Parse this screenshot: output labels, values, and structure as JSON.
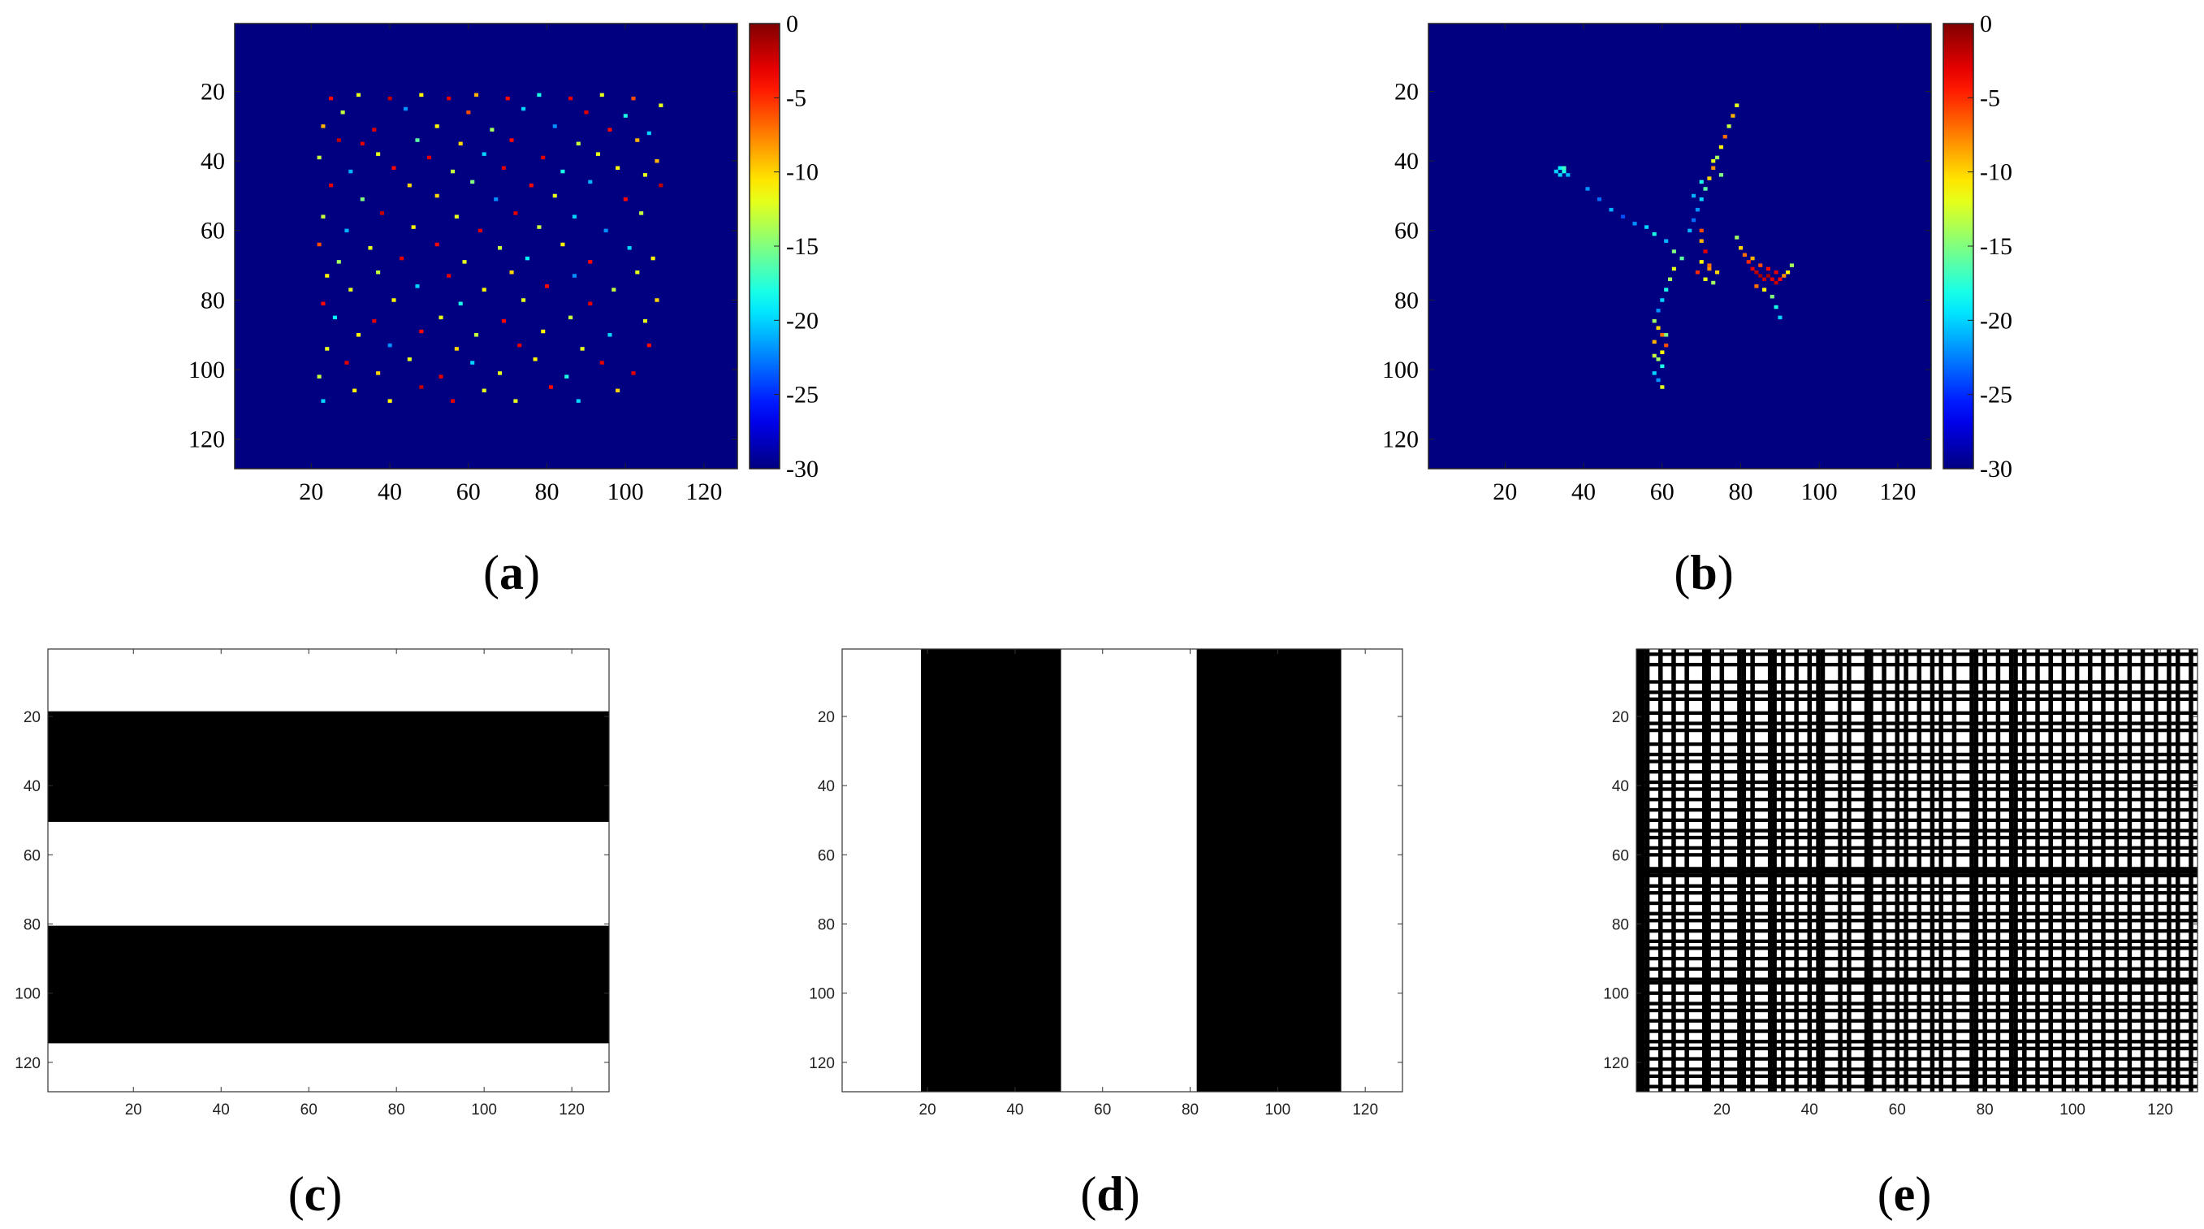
{
  "chart_data": [
    {
      "panel": "a",
      "type": "heatmap",
      "caption": "(a)",
      "colormap": "jet",
      "xlim": [
        0.5,
        128.5
      ],
      "ylim": [
        0.5,
        128.5
      ],
      "xticks": [
        20,
        40,
        60,
        80,
        100,
        120
      ],
      "yticks": [
        20,
        40,
        60,
        80,
        100,
        120
      ],
      "xticklabels": [
        "20",
        "40",
        "60",
        "80",
        "100",
        "120"
      ],
      "yticklabels": [
        "20",
        "40",
        "60",
        "80",
        "100",
        "120"
      ],
      "colorbar": {
        "range": [
          -30,
          0
        ],
        "ticks": [
          "0",
          "-5",
          "-10",
          "-15",
          "-20",
          "-25",
          "-30"
        ]
      },
      "background_value": -30,
      "points": [
        [
          25,
          22,
          -4
        ],
        [
          32,
          21,
          -12
        ],
        [
          40,
          22,
          -2
        ],
        [
          48,
          21,
          -11
        ],
        [
          55,
          22,
          -3
        ],
        [
          62,
          21,
          -9
        ],
        [
          70,
          22,
          -4
        ],
        [
          78,
          21,
          -18
        ],
        [
          86,
          22,
          -3
        ],
        [
          94,
          21,
          -12
        ],
        [
          102,
          22,
          -6
        ],
        [
          109,
          24,
          -12
        ],
        [
          28,
          26,
          -13
        ],
        [
          44,
          25,
          -22
        ],
        [
          60,
          26,
          -6
        ],
        [
          74,
          25,
          -20
        ],
        [
          90,
          26,
          -3
        ],
        [
          100,
          27,
          -18
        ],
        [
          23,
          30,
          -9
        ],
        [
          36,
          31,
          -3
        ],
        [
          52,
          30,
          -11
        ],
        [
          66,
          31,
          -14
        ],
        [
          82,
          30,
          -22
        ],
        [
          96,
          31,
          -4
        ],
        [
          106,
          32,
          -20
        ],
        [
          27,
          34,
          -2
        ],
        [
          33,
          35,
          -3
        ],
        [
          47,
          34,
          -16
        ],
        [
          58,
          35,
          -10
        ],
        [
          71,
          34,
          -4
        ],
        [
          88,
          35,
          -13
        ],
        [
          103,
          34,
          -9
        ],
        [
          22,
          39,
          -13
        ],
        [
          37,
          38,
          -12
        ],
        [
          50,
          39,
          -3
        ],
        [
          64,
          38,
          -20
        ],
        [
          79,
          39,
          -3
        ],
        [
          93,
          38,
          -12
        ],
        [
          108,
          40,
          -9
        ],
        [
          30,
          43,
          -21
        ],
        [
          41,
          42,
          -4
        ],
        [
          56,
          43,
          -13
        ],
        [
          69,
          42,
          -3
        ],
        [
          84,
          43,
          -18
        ],
        [
          98,
          42,
          -11
        ],
        [
          105,
          44,
          -12
        ],
        [
          25,
          47,
          -3
        ],
        [
          45,
          47,
          -10
        ],
        [
          61,
          46,
          -15
        ],
        [
          76,
          47,
          -4
        ],
        [
          91,
          46,
          -21
        ],
        [
          109,
          47,
          -2
        ],
        [
          33,
          51,
          -15
        ],
        [
          52,
          50,
          -10
        ],
        [
          67,
          51,
          -22
        ],
        [
          82,
          50,
          -12
        ],
        [
          100,
          51,
          -4
        ],
        [
          23,
          56,
          -13
        ],
        [
          38,
          55,
          -2
        ],
        [
          57,
          56,
          -12
        ],
        [
          72,
          55,
          -3
        ],
        [
          87,
          56,
          -20
        ],
        [
          104,
          55,
          -13
        ],
        [
          29,
          60,
          -21
        ],
        [
          46,
          59,
          -11
        ],
        [
          63,
          60,
          -3
        ],
        [
          78,
          59,
          -13
        ],
        [
          95,
          60,
          -22
        ],
        [
          22,
          64,
          -6
        ],
        [
          35,
          65,
          -12
        ],
        [
          52,
          64,
          -4
        ],
        [
          68,
          65,
          -13
        ],
        [
          84,
          64,
          -11
        ],
        [
          101,
          65,
          -20
        ],
        [
          27,
          69,
          -14
        ],
        [
          43,
          68,
          -3
        ],
        [
          59,
          69,
          -12
        ],
        [
          75,
          68,
          -19
        ],
        [
          91,
          69,
          -4
        ],
        [
          107,
          68,
          -11
        ],
        [
          24,
          73,
          -11
        ],
        [
          37,
          72,
          -13
        ],
        [
          55,
          73,
          -3
        ],
        [
          71,
          72,
          -10
        ],
        [
          87,
          73,
          -22
        ],
        [
          103,
          72,
          -12
        ],
        [
          30,
          77,
          -12
        ],
        [
          47,
          76,
          -20
        ],
        [
          64,
          77,
          -11
        ],
        [
          80,
          76,
          -4
        ],
        [
          97,
          77,
          -13
        ],
        [
          23,
          81,
          -4
        ],
        [
          41,
          80,
          -11
        ],
        [
          58,
          81,
          -18
        ],
        [
          74,
          80,
          -12
        ],
        [
          91,
          81,
          -3
        ],
        [
          108,
          80,
          -10
        ],
        [
          26,
          85,
          -19
        ],
        [
          36,
          86,
          -3
        ],
        [
          53,
          85,
          -12
        ],
        [
          69,
          86,
          -4
        ],
        [
          86,
          85,
          -13
        ],
        [
          105,
          86,
          -12
        ],
        [
          32,
          90,
          -11
        ],
        [
          48,
          89,
          -4
        ],
        [
          62,
          90,
          -13
        ],
        [
          79,
          89,
          -11
        ],
        [
          96,
          90,
          -20
        ],
        [
          24,
          94,
          -12
        ],
        [
          40,
          93,
          -22
        ],
        [
          57,
          94,
          -10
        ],
        [
          73,
          93,
          -3
        ],
        [
          89,
          94,
          -12
        ],
        [
          106,
          93,
          -4
        ],
        [
          29,
          98,
          -3
        ],
        [
          45,
          97,
          -12
        ],
        [
          61,
          98,
          -20
        ],
        [
          77,
          97,
          -11
        ],
        [
          94,
          98,
          -3
        ],
        [
          22,
          102,
          -13
        ],
        [
          37,
          101,
          -10
        ],
        [
          53,
          102,
          -3
        ],
        [
          68,
          101,
          -12
        ],
        [
          85,
          102,
          -18
        ],
        [
          102,
          101,
          -3
        ],
        [
          31,
          106,
          -11
        ],
        [
          48,
          105,
          -2
        ],
        [
          64,
          106,
          -12
        ],
        [
          81,
          105,
          -4
        ],
        [
          98,
          106,
          -10
        ],
        [
          23,
          109,
          -20
        ],
        [
          40,
          109,
          -11
        ],
        [
          56,
          109,
          -3
        ],
        [
          72,
          109,
          -12
        ],
        [
          88,
          109,
          -20
        ]
      ]
    },
    {
      "panel": "b",
      "type": "heatmap",
      "caption": "(b)",
      "colormap": "jet",
      "xlim": [
        0.5,
        128.5
      ],
      "ylim": [
        0.5,
        128.5
      ],
      "xticks": [
        20,
        40,
        60,
        80,
        100,
        120
      ],
      "yticks": [
        20,
        40,
        60,
        80,
        100,
        120
      ],
      "xticklabels": [
        "20",
        "40",
        "60",
        "80",
        "100",
        "120"
      ],
      "yticklabels": [
        "20",
        "40",
        "60",
        "80",
        "100",
        "120"
      ],
      "colorbar": {
        "range": [
          -30,
          0
        ],
        "ticks": [
          "0",
          "-5",
          "-10",
          "-15",
          "-20",
          "-25",
          "-30"
        ]
      },
      "background_value": -30,
      "points": [
        [
          33,
          43,
          -20
        ],
        [
          34,
          42,
          -19
        ],
        [
          35,
          43,
          -18
        ],
        [
          36,
          44,
          -21
        ],
        [
          34,
          44,
          -20
        ],
        [
          35,
          42,
          -17
        ],
        [
          41,
          48,
          -22
        ],
        [
          44,
          51,
          -23
        ],
        [
          47,
          54,
          -21
        ],
        [
          50,
          56,
          -24
        ],
        [
          53,
          58,
          -22
        ],
        [
          56,
          59,
          -20
        ],
        [
          58,
          61,
          -18
        ],
        [
          61,
          63,
          -21
        ],
        [
          63,
          66,
          -15
        ],
        [
          79,
          24,
          -12
        ],
        [
          78,
          27,
          -9
        ],
        [
          77,
          30,
          -13
        ],
        [
          76,
          33,
          -7
        ],
        [
          75,
          36,
          -11
        ],
        [
          74,
          39,
          -14
        ],
        [
          73,
          42,
          -8
        ],
        [
          72,
          45,
          -10
        ],
        [
          71,
          48,
          -16
        ],
        [
          70,
          51,
          -20
        ],
        [
          69,
          54,
          -22
        ],
        [
          68,
          57,
          -23
        ],
        [
          67,
          60,
          -21
        ],
        [
          73,
          40,
          -12
        ],
        [
          75,
          44,
          -15
        ],
        [
          70,
          46,
          -18
        ],
        [
          68,
          50,
          -21
        ],
        [
          70,
          60,
          -6
        ],
        [
          70,
          63,
          -9
        ],
        [
          71,
          66,
          -3
        ],
        [
          70,
          69,
          -11
        ],
        [
          72,
          71,
          -8
        ],
        [
          69,
          72,
          -5
        ],
        [
          71,
          74,
          -12
        ],
        [
          79,
          62,
          -14
        ],
        [
          80,
          65,
          -10
        ],
        [
          81,
          67,
          -7
        ],
        [
          82,
          69,
          -5
        ],
        [
          83,
          71,
          -3
        ],
        [
          84,
          72,
          -2
        ],
        [
          85,
          73,
          -1
        ],
        [
          86,
          74,
          -2
        ],
        [
          87,
          73,
          -1
        ],
        [
          88,
          74,
          -3
        ],
        [
          89,
          75,
          -2
        ],
        [
          90,
          74,
          -4
        ],
        [
          91,
          73,
          -8
        ],
        [
          92,
          72,
          -11
        ],
        [
          93,
          70,
          -14
        ],
        [
          83,
          68,
          -9
        ],
        [
          85,
          70,
          -6
        ],
        [
          87,
          71,
          -4
        ],
        [
          89,
          72,
          -3
        ],
        [
          84,
          76,
          -7
        ],
        [
          86,
          77,
          -11
        ],
        [
          88,
          79,
          -15
        ],
        [
          89,
          82,
          -18
        ],
        [
          90,
          85,
          -20
        ],
        [
          74,
          72,
          -10
        ],
        [
          73,
          75,
          -14
        ],
        [
          72,
          70,
          -7
        ],
        [
          65,
          68,
          -16
        ],
        [
          63,
          71,
          -12
        ],
        [
          62,
          74,
          -14
        ],
        [
          61,
          77,
          -18
        ],
        [
          60,
          80,
          -20
        ],
        [
          59,
          83,
          -22
        ],
        [
          58,
          86,
          -14
        ],
        [
          59,
          88,
          -10
        ],
        [
          60,
          90,
          -7
        ],
        [
          58,
          92,
          -9
        ],
        [
          61,
          93,
          -6
        ],
        [
          60,
          95,
          -11
        ],
        [
          59,
          97,
          -14
        ],
        [
          60,
          99,
          -18
        ],
        [
          58,
          101,
          -20
        ],
        [
          59,
          103,
          -22
        ],
        [
          60,
          105,
          -12
        ],
        [
          61,
          90,
          -15
        ],
        [
          58,
          96,
          -13
        ]
      ]
    },
    {
      "panel": "c",
      "type": "heatmap",
      "caption": "(c)",
      "colormap": "gray",
      "xlim": [
        0.5,
        128.5
      ],
      "ylim": [
        0.5,
        128.5
      ],
      "xticks": [
        20,
        40,
        60,
        80,
        100,
        120
      ],
      "yticks": [
        20,
        40,
        60,
        80,
        100,
        120
      ],
      "xticklabels": [
        "20",
        "40",
        "60",
        "80",
        "100",
        "120"
      ],
      "yticklabels": [
        "20",
        "40",
        "60",
        "80",
        "100",
        "120"
      ],
      "bands": {
        "orientation": "horizontal",
        "black_ranges": [
          [
            19,
            50
          ],
          [
            81,
            114
          ]
        ]
      }
    },
    {
      "panel": "d",
      "type": "heatmap",
      "caption": "(d)",
      "colormap": "gray",
      "xlim": [
        0.5,
        128.5
      ],
      "ylim": [
        0.5,
        128.5
      ],
      "xticks": [
        20,
        40,
        60,
        80,
        100,
        120
      ],
      "yticks": [
        20,
        40,
        60,
        80,
        100,
        120
      ],
      "xticklabels": [
        "20",
        "40",
        "60",
        "80",
        "100",
        "120"
      ],
      "yticklabels": [
        "20",
        "40",
        "60",
        "80",
        "100",
        "120"
      ],
      "bands": {
        "orientation": "vertical",
        "black_ranges": [
          [
            19,
            50
          ],
          [
            82,
            114
          ]
        ]
      }
    },
    {
      "panel": "e",
      "type": "heatmap",
      "caption": "(e)",
      "colormap": "gray",
      "xlim": [
        0.5,
        128.5
      ],
      "ylim": [
        0.5,
        128.5
      ],
      "xticks": [
        20,
        40,
        60,
        80,
        100,
        120
      ],
      "yticks": [
        20,
        40,
        60,
        80,
        100,
        120
      ],
      "xticklabels": [
        "20",
        "40",
        "60",
        "80",
        "100",
        "120"
      ],
      "yticklabels": [
        "20",
        "40",
        "60",
        "80",
        "100",
        "120"
      ],
      "black_rows": [
        2,
        5,
        10,
        13,
        15,
        19,
        22,
        24,
        28,
        31,
        33,
        36,
        39,
        41,
        44,
        47,
        50,
        53,
        55,
        58,
        60,
        64,
        65,
        66,
        69,
        71,
        74,
        77,
        79,
        82,
        85,
        87,
        90,
        93,
        96,
        97,
        100,
        103,
        105,
        108,
        111,
        114,
        116,
        119,
        122,
        124,
        127
      ],
      "black_cols": [
        1,
        2,
        3,
        6,
        9,
        12,
        16,
        17,
        20,
        24,
        25,
        27,
        31,
        32,
        34,
        37,
        40,
        42,
        43,
        47,
        49,
        53,
        54,
        57,
        60,
        62,
        65,
        68,
        70,
        73,
        77,
        78,
        80,
        83,
        86,
        87,
        89,
        92,
        95,
        98,
        101,
        104,
        107,
        110,
        113,
        116,
        119,
        122,
        124,
        127
      ]
    }
  ]
}
